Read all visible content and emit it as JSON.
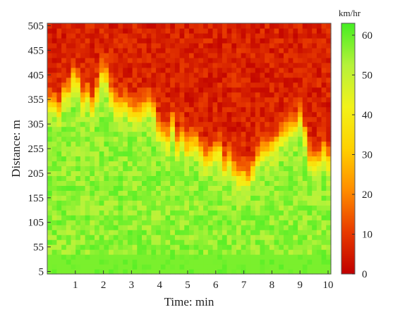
{
  "chart_data": {
    "type": "heatmap",
    "title": "",
    "xlabel": "Time: min",
    "ylabel": "Distance: m",
    "x_range": [
      0,
      10.1
    ],
    "y_range": [
      0,
      510
    ],
    "x_ticks": [
      1,
      2,
      3,
      4,
      5,
      6,
      7,
      8,
      9,
      10
    ],
    "y_ticks": [
      5,
      55,
      105,
      155,
      205,
      255,
      305,
      355,
      405,
      455,
      505
    ],
    "colorbar": {
      "label": "km/hr",
      "min": 0,
      "max": 63,
      "ticks": [
        0,
        10,
        20,
        30,
        40,
        50,
        60
      ],
      "colors": [
        "#c00000",
        "#e83a00",
        "#ff8c00",
        "#ffd100",
        "#f2f21a",
        "#b6f23a",
        "#44ee22"
      ]
    },
    "grid": false,
    "speed_profile": {
      "time_min": [
        0,
        0.5,
        1.0,
        1.5,
        2.0,
        2.5,
        3.0,
        3.5,
        4.0,
        4.5,
        5.0,
        5.5,
        6.0,
        6.5,
        7.0,
        7.5,
        8.0,
        8.5,
        9.0,
        9.5,
        10.1
      ],
      "congestion_front_m": [
        360,
        340,
        390,
        345,
        405,
        360,
        335,
        355,
        300,
        285,
        260,
        250,
        240,
        225,
        195,
        250,
        265,
        290,
        305,
        225,
        240
      ],
      "free_flow_kmh": 56,
      "congested_kmh": 6
    }
  }
}
